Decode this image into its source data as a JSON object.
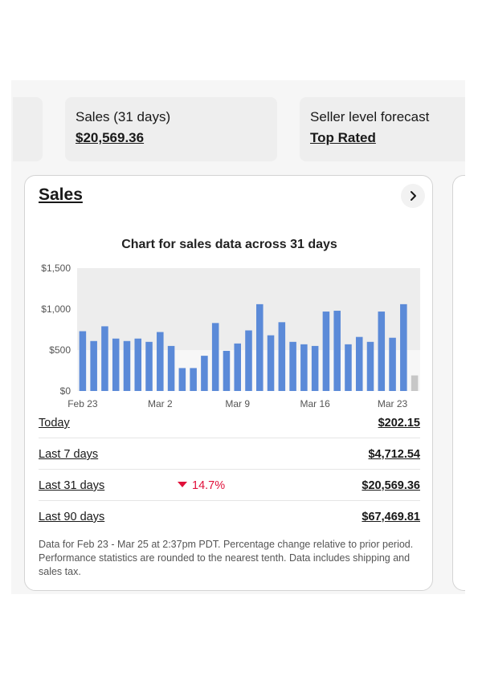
{
  "summary": {
    "sales_tile": {
      "label": "Sales (31 days)",
      "value": "$20,569.36"
    },
    "seller_tile": {
      "label": "Seller level forecast",
      "value": "Top Rated"
    }
  },
  "card": {
    "title": "Sales",
    "chevron_icon": "chevron-right-icon"
  },
  "chart_data": {
    "type": "bar",
    "title": "Chart for sales data across 31 days",
    "ylim": [
      0,
      1500
    ],
    "y_ticks": [
      "$0",
      "$500",
      "$1,000",
      "$1,500"
    ],
    "x_tick_labels": [
      "Feb 23",
      "Mar 2",
      "Mar 9",
      "Mar 16",
      "Mar 23"
    ],
    "categories": [
      "Feb 23",
      "Feb 24",
      "Feb 25",
      "Feb 26",
      "Feb 27",
      "Feb 28",
      "Mar 1",
      "Mar 2",
      "Mar 3",
      "Mar 4",
      "Mar 5",
      "Mar 6",
      "Mar 7",
      "Mar 8",
      "Mar 9",
      "Mar 10",
      "Mar 11",
      "Mar 12",
      "Mar 13",
      "Mar 14",
      "Mar 15",
      "Mar 16",
      "Mar 17",
      "Mar 18",
      "Mar 19",
      "Mar 20",
      "Mar 21",
      "Mar 22",
      "Mar 23",
      "Mar 24",
      "Mar 25"
    ],
    "values": [
      730,
      610,
      790,
      640,
      610,
      640,
      600,
      720,
      550,
      280,
      280,
      430,
      830,
      490,
      580,
      740,
      1060,
      680,
      840,
      600,
      570,
      550,
      970,
      980,
      570,
      660,
      600,
      970,
      650,
      1060,
      190
    ],
    "highlight_last": true,
    "shaded_band": [
      500,
      1500
    ],
    "colors": {
      "bar": "#5b8ad8",
      "last_bar": "#c7c7c7",
      "band": "#ededed",
      "plot_bg": "#f7f7f7"
    }
  },
  "periods": [
    {
      "label": "Today",
      "value": "$202.15"
    },
    {
      "label": "Last 7 days",
      "value": "$4,712.54"
    },
    {
      "label": "Last 31 days",
      "value": "$20,569.36",
      "change": "14.7%",
      "change_direction": "down"
    },
    {
      "label": "Last 90 days",
      "value": "$67,469.81"
    }
  ],
  "footnote": "Data for Feb 23 - Mar 25 at 2:37pm PDT. Percentage change relative to prior period. Performance statistics are rounded to the nearest tenth. Data includes shipping and sales tax.",
  "colors": {
    "negative": "#e0103a"
  }
}
